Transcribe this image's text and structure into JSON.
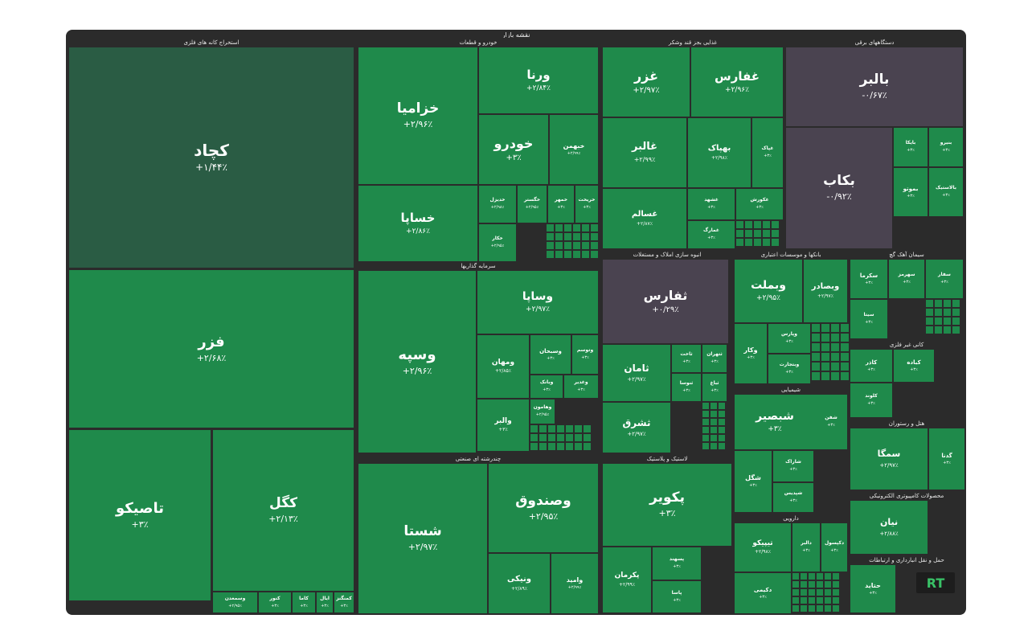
{
  "chart_data": {
    "type": "treemap",
    "title": "نقشه بازار",
    "colors": {
      "up_strong": "#1f8a4b",
      "up_weak": "#2a5c44",
      "down": "#4a4350",
      "border": "#2b2b2b",
      "text": "#ffffff"
    },
    "sectors": [
      {
        "name": "استخراج کانه های فلزی",
        "tiles": [
          {
            "name": "کچاد",
            "change": "+۱/۴۴٪",
            "value": 1.44
          },
          {
            "name": "فزر",
            "change": "+۲/۶۸٪",
            "value": 2.68
          },
          {
            "name": "تاصیکو",
            "change": "+۳٪",
            "value": 3.0
          },
          {
            "name": "کگل",
            "change": "+۲/۱۳٪",
            "value": 2.13
          },
          {
            "name": "وسمعدن",
            "change": "+۲/۹۵٪",
            "value": 2.95
          },
          {
            "name": "کنور",
            "change": "+۳٪",
            "value": 3.0
          },
          {
            "name": "کاما",
            "change": "+۳٪",
            "value": 3.0
          },
          {
            "name": "ایال",
            "change": "+۳٪",
            "value": 3.0
          },
          {
            "name": "کمنگنز",
            "change": "+۳٪",
            "value": 3.0
          }
        ]
      },
      {
        "name": "خودرو و قطعات",
        "tiles": [
          {
            "name": "خزامیا",
            "change": "+۲/۹۶٪",
            "value": 2.96
          },
          {
            "name": "ورنا",
            "change": "+۲/۸۴٪",
            "value": 2.84
          },
          {
            "name": "خودرو",
            "change": "+۳٪",
            "value": 3.0
          },
          {
            "name": "خبهمن",
            "change": "+۲/۹۹٪",
            "value": 2.99
          },
          {
            "name": "خساپا",
            "change": "+۲/۸۶٪",
            "value": 2.86
          },
          {
            "name": "خدیزل",
            "change": "+۲/۹۸٪",
            "value": 2.98
          },
          {
            "name": "خگستر",
            "change": "+۲/۹۵٪",
            "value": 2.95
          },
          {
            "name": "خکار",
            "change": "+۲/۹۵٪",
            "value": 2.95
          },
          {
            "name": "خمهر",
            "change": "+۳٪",
            "value": 3.0
          },
          {
            "name": "خریخت",
            "change": "+۳٪",
            "value": 3.0
          }
        ]
      },
      {
        "name": "سرمایه گذاریها",
        "tiles": [
          {
            "name": "وسپه",
            "change": "+۲/۹۶٪",
            "value": 2.96
          },
          {
            "name": "وساپا",
            "change": "+۲/۹۷٪",
            "value": 2.97
          },
          {
            "name": "ومهان",
            "change": "+۲/۸۵٪",
            "value": 2.85
          },
          {
            "name": "وسبحان",
            "change": "+۳٪",
            "value": 3.0
          },
          {
            "name": "وتوسم",
            "change": "+۳٪",
            "value": 3.0
          },
          {
            "name": "وبانک",
            "change": "+۳٪",
            "value": 3.0
          },
          {
            "name": "وغدیر",
            "change": "+۳٪",
            "value": 3.0
          },
          {
            "name": "والبر",
            "change": "+۳٪",
            "value": 3.0
          },
          {
            "name": "وهامون",
            "change": "+۲/۹۵٪",
            "value": 2.95
          }
        ]
      },
      {
        "name": "چندرشته ای صنعتی",
        "tiles": [
          {
            "name": "شستا",
            "change": "+۲/۹۷٪",
            "value": 2.97
          },
          {
            "name": "وصندوق",
            "change": "+۲/۹۵٪",
            "value": 2.95
          },
          {
            "name": "ونیکی",
            "change": "+۲/۸۹٪",
            "value": 2.89
          },
          {
            "name": "وامید",
            "change": "+۲/۹۹٪",
            "value": 2.99
          }
        ]
      },
      {
        "name": "غذایی بجز قند وشکر",
        "tiles": [
          {
            "name": "غزر",
            "change": "+۲/۹۷٪",
            "value": 2.97
          },
          {
            "name": "غفارس",
            "change": "+۲/۹۶٪",
            "value": 2.96
          },
          {
            "name": "غالبر",
            "change": "+۲/۹۹٪",
            "value": 2.99
          },
          {
            "name": "بهپاک",
            "change": "+۲/۹۸٪",
            "value": 2.98
          },
          {
            "name": "غپاک",
            "change": "+۳٪",
            "value": 3.0
          },
          {
            "name": "غسالم",
            "change": "+۲/۸۷٪",
            "value": 2.87
          },
          {
            "name": "غشهد",
            "change": "+۳٪",
            "value": 3.0
          },
          {
            "name": "غمارگ",
            "change": "+۳٪",
            "value": 3.0
          },
          {
            "name": "غکورش",
            "change": "+۳٪",
            "value": 3.0
          }
        ]
      },
      {
        "name": "دستگاههای برقی",
        "tiles": [
          {
            "name": "بالبر",
            "change": "-۰/۶۷٪",
            "value": -0.67
          },
          {
            "name": "بکاب",
            "change": "-۰/۹۲٪",
            "value": -0.92
          },
          {
            "name": "بایکا",
            "change": "+۳٪",
            "value": 3.0
          },
          {
            "name": "بموتو",
            "change": "+۳٪",
            "value": 3.0
          },
          {
            "name": "بنیرو",
            "change": "+۳٪",
            "value": 3.0
          },
          {
            "name": "بالاستیک",
            "change": "+۳٪",
            "value": 3.0
          }
        ]
      },
      {
        "name": "انبوه سازی املاک و مستغلات",
        "tiles": [
          {
            "name": "ثفارس",
            "change": "+۰/۲۹٪",
            "value": 0.29
          },
          {
            "name": "ثامان",
            "change": "+۲/۹۷٪",
            "value": 2.97
          },
          {
            "name": "ثشرق",
            "change": "+۲/۹۷٪",
            "value": 2.97
          },
          {
            "name": "ثاخت",
            "change": "+۳٪",
            "value": 3.0
          },
          {
            "name": "ثنوسا",
            "change": "+۳٪",
            "value": 3.0
          },
          {
            "name": "ثتهران",
            "change": "+۳٪",
            "value": 3.0
          },
          {
            "name": "ثباغ",
            "change": "+۳٪",
            "value": 3.0
          }
        ]
      },
      {
        "name": "لاستیک و پلاستیک",
        "tiles": [
          {
            "name": "پکویر",
            "change": "+۳٪",
            "value": 3.0
          },
          {
            "name": "پکرمان",
            "change": "+۲/۹۹٪",
            "value": 2.99
          },
          {
            "name": "پسهند",
            "change": "+۳٪",
            "value": 3.0
          },
          {
            "name": "پاسا",
            "change": "+۳٪",
            "value": 3.0
          }
        ]
      },
      {
        "name": "بانکها و موسسات اعتباری",
        "tiles": [
          {
            "name": "وبملت",
            "change": "+۲/۹۵٪",
            "value": 2.95
          },
          {
            "name": "وبصادر",
            "change": "+۲/۹۷٪",
            "value": 2.97
          },
          {
            "name": "وکار",
            "change": "+۳٪",
            "value": 3.0
          },
          {
            "name": "وپارس",
            "change": "+۳٪",
            "value": 3.0
          },
          {
            "name": "وبتجارت",
            "change": "+۳٪",
            "value": 3.0
          }
        ]
      },
      {
        "name": "شیمیایی",
        "tiles": [
          {
            "name": "شبصیر",
            "change": "+۳٪",
            "value": 3.0
          },
          {
            "name": "شگل",
            "change": "+۳٪",
            "value": 3.0
          },
          {
            "name": "شاراک",
            "change": "+۳٪",
            "value": 3.0
          },
          {
            "name": "شپدیس",
            "change": "+۳٪",
            "value": 3.0
          },
          {
            "name": "شفن",
            "change": "+۳٪",
            "value": 3.0
          }
        ]
      },
      {
        "name": "دارویی",
        "tiles": [
          {
            "name": "تیپیکو",
            "change": "+۲/۹۸٪",
            "value": 2.98
          },
          {
            "name": "دالبر",
            "change": "+۳٪",
            "value": 3.0
          },
          {
            "name": "دکیمی",
            "change": "+۳٪",
            "value": 3.0
          },
          {
            "name": "دکپسول",
            "change": "+۳٪",
            "value": 3.0
          }
        ]
      },
      {
        "name": "سیمان آهک گچ",
        "tiles": [
          {
            "name": "سکرما",
            "change": "+۳٪",
            "value": 3.0
          },
          {
            "name": "سهرمز",
            "change": "+۳٪",
            "value": 3.0
          },
          {
            "name": "سیتا",
            "change": "+۳٪",
            "value": 3.0
          },
          {
            "name": "سفار",
            "change": "+۳٪",
            "value": 3.0
          }
        ]
      },
      {
        "name": "کانی غیر فلزی",
        "tiles": [
          {
            "name": "کاذر",
            "change": "+۳٪",
            "value": 3.0
          },
          {
            "name": "کباده",
            "change": "+۳٪",
            "value": 3.0
          },
          {
            "name": "کلوند",
            "change": "+۳٪",
            "value": 3.0
          }
        ]
      },
      {
        "name": "هتل و رستوران",
        "tiles": [
          {
            "name": "سمگا",
            "change": "+۲/۹۷٪",
            "value": 2.97
          },
          {
            "name": "گدنا",
            "change": "+۳٪",
            "value": 3.0
          }
        ]
      },
      {
        "name": "محصولات کامپیوتری الکترونیکی",
        "tiles": [
          {
            "name": "نیان",
            "change": "+۲/۸۸٪",
            "value": 2.88
          }
        ]
      },
      {
        "name": "حمل و نقل انبارداری و ارتباطات",
        "tiles": [
          {
            "name": "حتاید",
            "change": "+۳٪",
            "value": 3.0
          }
        ]
      }
    ]
  }
}
